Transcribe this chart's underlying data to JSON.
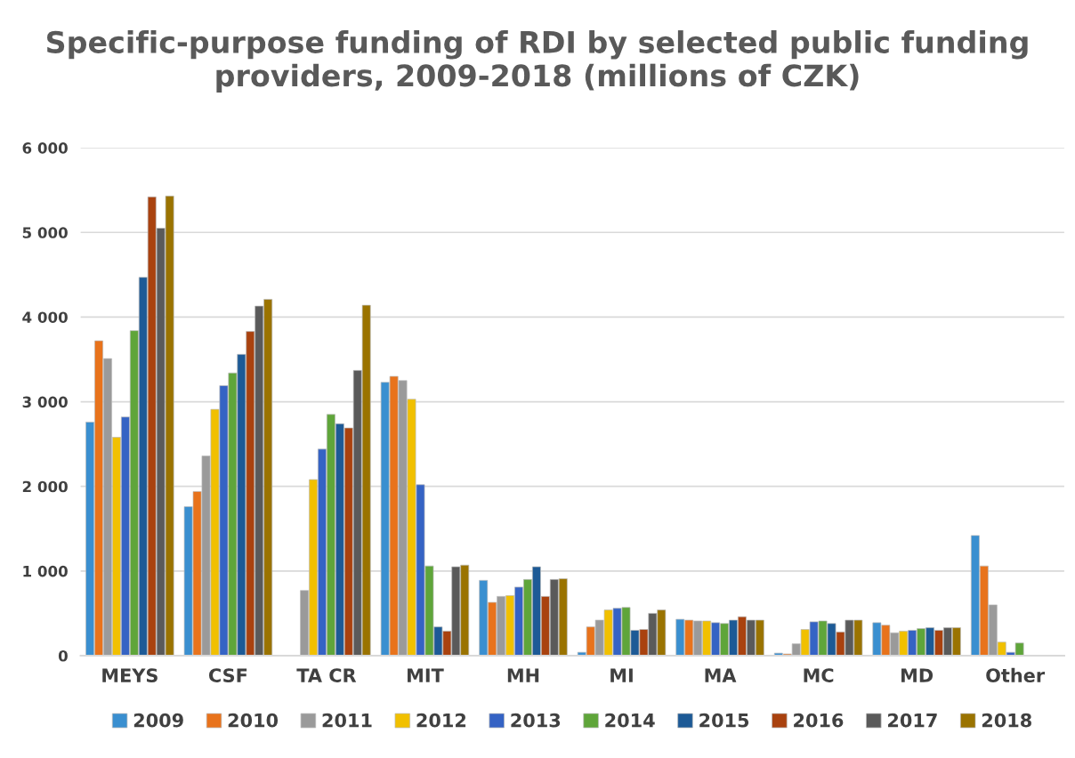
{
  "chart_data": {
    "type": "bar",
    "title": "Specific-purpose funding of RDI by selected public funding providers, 2009-2018 (millions of CZK)",
    "categories": [
      "MEYS",
      "CSF",
      "TA CR",
      "MIT",
      "MH",
      "MI",
      "MA",
      "MC",
      "MD",
      "Other"
    ],
    "series": [
      {
        "name": "2009",
        "color": "#3a8fd0",
        "values": [
          2760,
          1760,
          null,
          3230,
          890,
          40,
          430,
          30,
          390,
          1420
        ]
      },
      {
        "name": "2010",
        "color": "#e8731c",
        "values": [
          3720,
          1940,
          null,
          3300,
          630,
          340,
          420,
          20,
          360,
          1060
        ]
      },
      {
        "name": "2011",
        "color": "#9a9a9a",
        "values": [
          3510,
          2360,
          770,
          3250,
          700,
          420,
          410,
          140,
          270,
          600
        ]
      },
      {
        "name": "2012",
        "color": "#f1c000",
        "values": [
          2580,
          2910,
          2080,
          3030,
          710,
          540,
          410,
          310,
          290,
          160
        ]
      },
      {
        "name": "2013",
        "color": "#3563c4",
        "values": [
          2820,
          3190,
          2440,
          2020,
          810,
          560,
          390,
          400,
          300,
          40
        ]
      },
      {
        "name": "2014",
        "color": "#5fa53a",
        "values": [
          3840,
          3340,
          2850,
          1060,
          900,
          570,
          380,
          410,
          320,
          150
        ]
      },
      {
        "name": "2015",
        "color": "#1d5a96",
        "values": [
          4470,
          3560,
          2740,
          340,
          1050,
          300,
          420,
          380,
          330,
          null
        ]
      },
      {
        "name": "2016",
        "color": "#a9420f",
        "values": [
          5420,
          3830,
          2690,
          290,
          700,
          310,
          460,
          280,
          300,
          null
        ]
      },
      {
        "name": "2017",
        "color": "#5a5a5a",
        "values": [
          5050,
          4130,
          3370,
          1050,
          900,
          500,
          420,
          420,
          330,
          null
        ]
      },
      {
        "name": "2018",
        "color": "#9a7300",
        "values": [
          5430,
          4210,
          4140,
          1070,
          910,
          540,
          420,
          420,
          330,
          null
        ]
      }
    ],
    "ylim": [
      0,
      6000
    ],
    "yticks": [
      {
        "value": 0,
        "label": "0"
      },
      {
        "value": 1000,
        "label": "1 000"
      },
      {
        "value": 2000,
        "label": "2 000"
      },
      {
        "value": 3000,
        "label": "3 000"
      },
      {
        "value": 4000,
        "label": "4 000"
      },
      {
        "value": 5000,
        "label": "5 000"
      },
      {
        "value": 6000,
        "label": "6 000"
      }
    ],
    "grid": "y",
    "legend": "bottom"
  }
}
